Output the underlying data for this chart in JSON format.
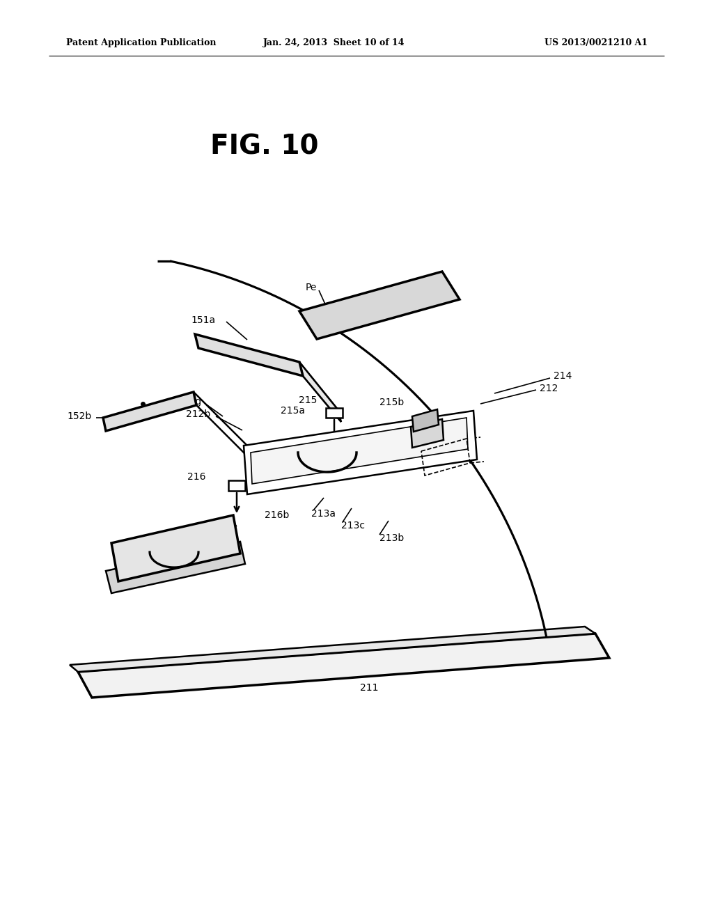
{
  "bg_color": "#ffffff",
  "header_left": "Patent Application Publication",
  "header_center": "Jan. 24, 2013  Sheet 10 of 14",
  "header_right": "US 2013/0021210 A1",
  "fig_label": "FIG. 10"
}
